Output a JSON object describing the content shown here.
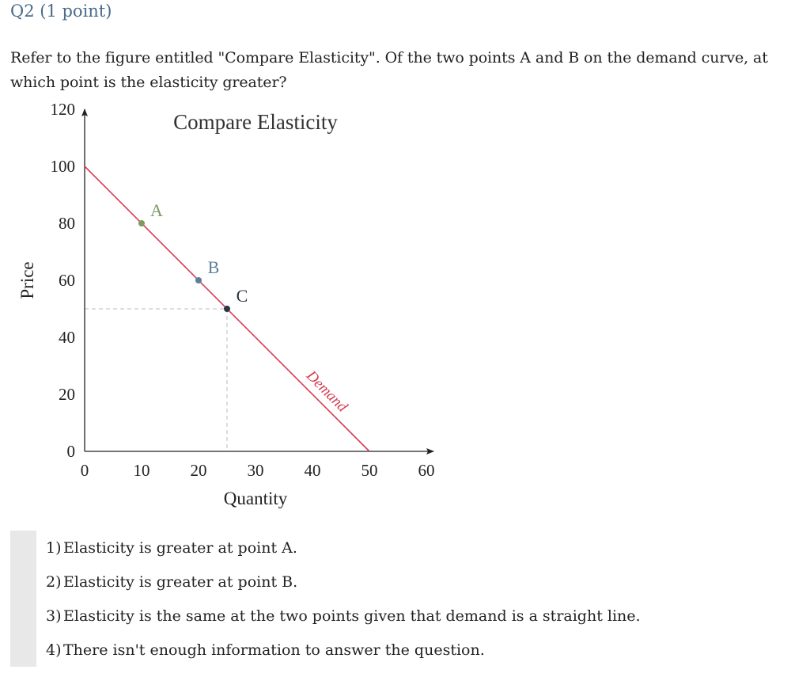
{
  "question": {
    "header": "Q2 (1 point)",
    "text": "Refer to the figure entitled \"Compare Elasticity\". Of the two points A and B on the demand curve, at which point is the elasticity greater?"
  },
  "chart_data": {
    "type": "line",
    "title": "Compare Elasticity",
    "xlabel": "Quantity",
    "ylabel": "Price",
    "xlim": [
      0,
      60
    ],
    "ylim": [
      0,
      120
    ],
    "x_ticks": [
      0,
      10,
      20,
      30,
      40,
      50,
      60
    ],
    "y_ticks": [
      0,
      20,
      40,
      60,
      80,
      100,
      120
    ],
    "grid": false,
    "series": [
      {
        "name": "Demand",
        "x": [
          0,
          50
        ],
        "y": [
          100,
          0
        ],
        "color": "#d63c50"
      }
    ],
    "points": [
      {
        "label": "A",
        "x": 10,
        "y": 80,
        "color": "#7a9a5e"
      },
      {
        "label": "B",
        "x": 20,
        "y": 60,
        "color": "#5b7f99"
      },
      {
        "label": "C",
        "x": 25,
        "y": 50,
        "color": "#2b3540"
      }
    ],
    "guides": {
      "x": 25,
      "y": 50
    }
  },
  "answers": [
    {
      "num": "1)",
      "text": "Elasticity is greater at point A."
    },
    {
      "num": "2)",
      "text": "Elasticity is greater at point B."
    },
    {
      "num": "3)",
      "text": "Elasticity is the same at the two points given that demand is a straight line."
    },
    {
      "num": "4)",
      "text": "There isn't enough information to answer the question."
    }
  ]
}
